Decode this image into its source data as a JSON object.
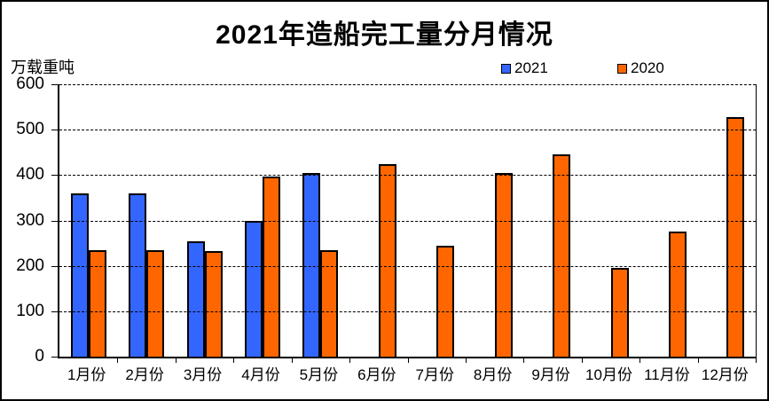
{
  "title": "2021年造船完工量分月情况",
  "unit_label": "万载重吨",
  "legend": [
    {
      "label": "2021",
      "color": "#3366FF"
    },
    {
      "label": "2020",
      "color": "#FF6600"
    }
  ],
  "colors": {
    "bar_outline": "#000000",
    "background": "#FFFFFF",
    "text": "#000000"
  },
  "chart_data": {
    "type": "bar",
    "title": "2021年造船完工量分月情况",
    "ylabel": "万载重吨",
    "xlabel": "",
    "categories": [
      "1月份",
      "2月份",
      "3月份",
      "4月份",
      "5月份",
      "6月份",
      "7月份",
      "8月份",
      "9月份",
      "10月份",
      "11月份",
      "12月份"
    ],
    "series": [
      {
        "name": "2021",
        "color": "#3366FF",
        "values": [
          360,
          360,
          255,
          300,
          405,
          null,
          null,
          null,
          null,
          null,
          null,
          null
        ]
      },
      {
        "name": "2020",
        "color": "#FF6600",
        "values": [
          235,
          235,
          233,
          397,
          234,
          425,
          245,
          405,
          445,
          195,
          275,
          527
        ]
      }
    ],
    "ylim": [
      0,
      600
    ],
    "yticks": [
      0,
      100,
      200,
      300,
      400,
      500,
      600
    ],
    "grid": "dashed-horizontal",
    "legend_position": "top"
  }
}
